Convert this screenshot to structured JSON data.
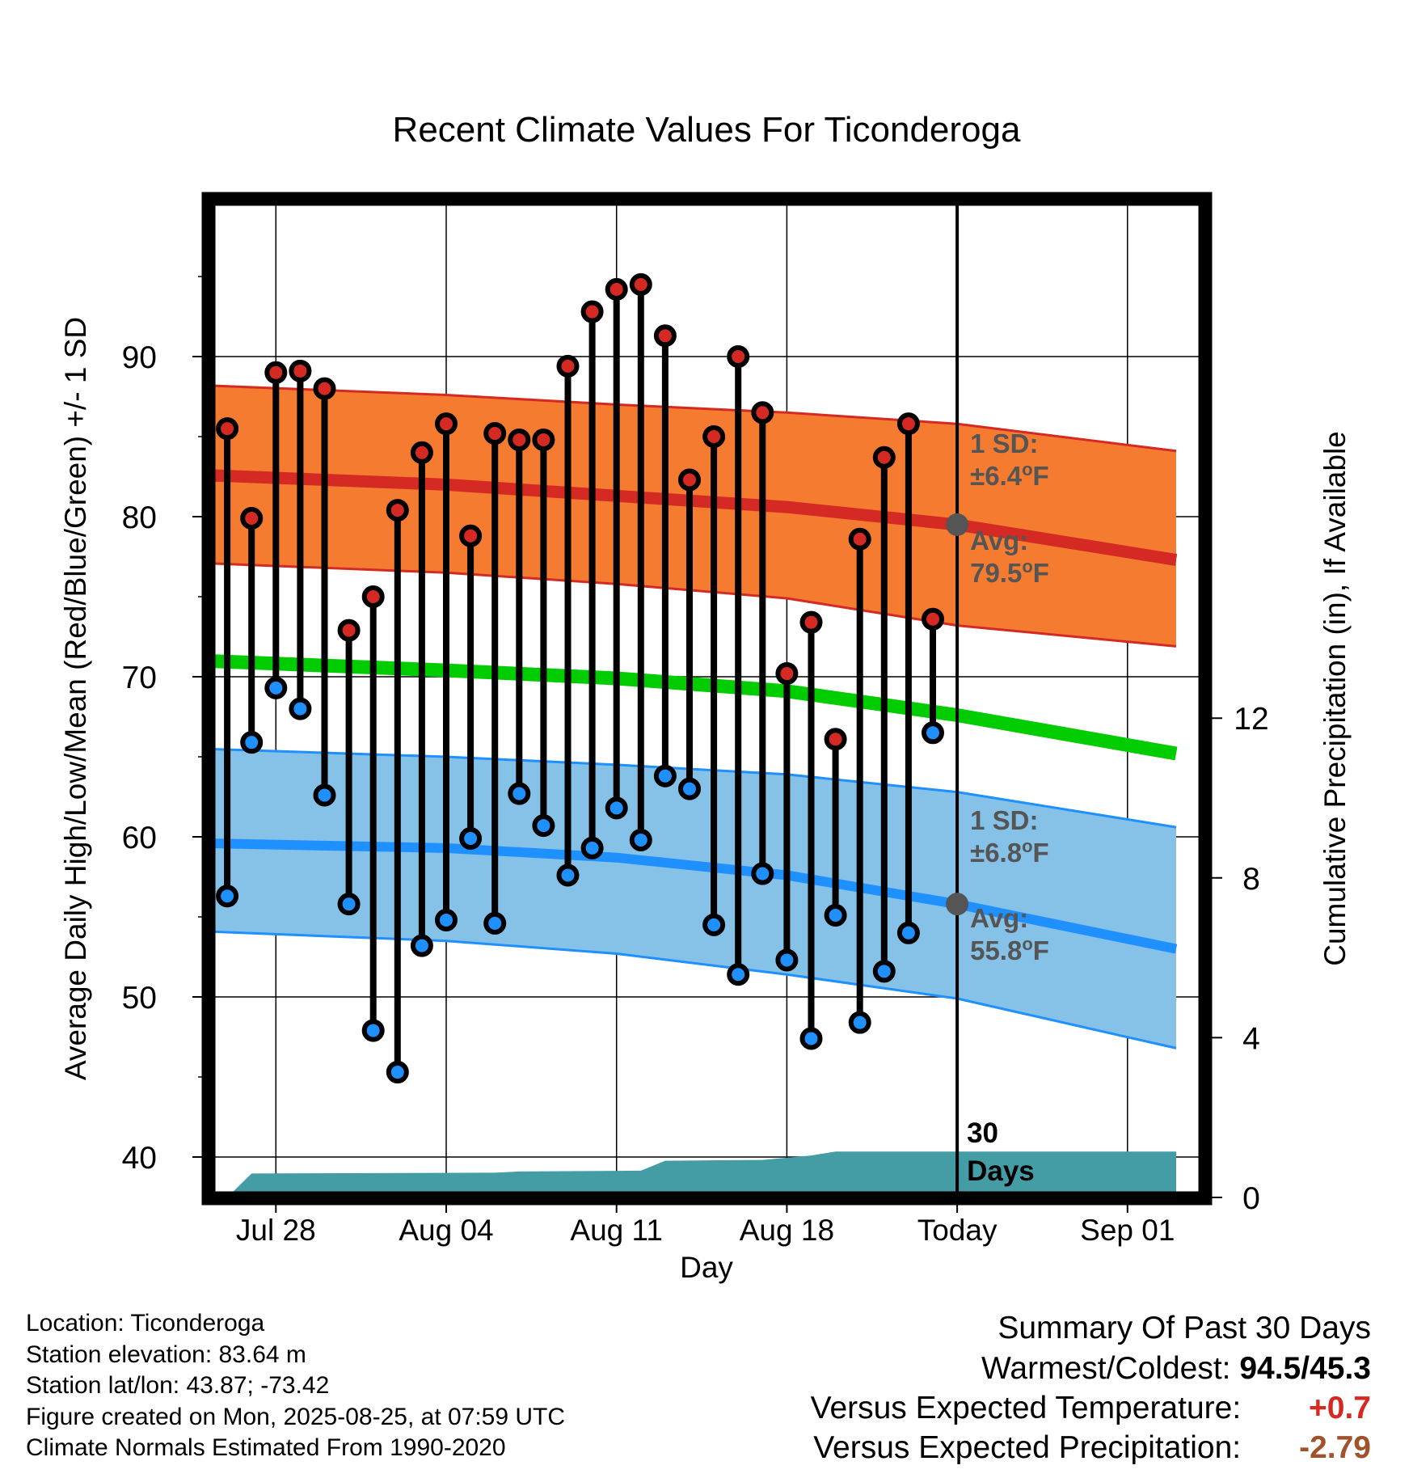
{
  "chart_data": {
    "type": "line",
    "title": "Recent Climate Values For Ticonderoga",
    "xlabel": "Day",
    "ylabel": "Average Daily High/Low/Mean (Red/Blue/Green) +/- 1 SD",
    "y2label": "Cumulative Precipitation (in), If Available",
    "ylim": [
      37.5,
      99.5
    ],
    "y_ticks": [
      40,
      50,
      60,
      70,
      80,
      90
    ],
    "y2lim": [
      0,
      20.3
    ],
    "y2_ticks": [
      0,
      4,
      8,
      12
    ],
    "x_tick_labels": [
      "Jul 28",
      "Aug 04",
      "Aug 11",
      "Aug 18",
      "Today",
      "Sep 01"
    ],
    "x_tick_dates": [
      "2025-07-28",
      "2025-08-04",
      "2025-08-11",
      "2025-08-18",
      "2025-08-25",
      "2025-09-01"
    ],
    "x_range": [
      "2025-07-25",
      "2025-09-03"
    ],
    "grid": true,
    "today": "2025-08-25",
    "period_label": "30 Days",
    "daily": [
      {
        "date": "2025-07-26",
        "high": 85.5,
        "low": 56.3
      },
      {
        "date": "2025-07-27",
        "high": 79.9,
        "low": 65.9
      },
      {
        "date": "2025-07-28",
        "high": 89.0,
        "low": 69.3
      },
      {
        "date": "2025-07-29",
        "high": 89.1,
        "low": 68.0
      },
      {
        "date": "2025-07-30",
        "high": 88.0,
        "low": 62.6
      },
      {
        "date": "2025-07-31",
        "high": 72.9,
        "low": 55.8
      },
      {
        "date": "2025-08-01",
        "high": 75.0,
        "low": 47.9
      },
      {
        "date": "2025-08-02",
        "high": 80.4,
        "low": 45.3
      },
      {
        "date": "2025-08-03",
        "high": 84.0,
        "low": 53.2
      },
      {
        "date": "2025-08-04",
        "high": 85.8,
        "low": 54.8
      },
      {
        "date": "2025-08-05",
        "high": 78.8,
        "low": 59.9
      },
      {
        "date": "2025-08-06",
        "high": 85.2,
        "low": 54.6
      },
      {
        "date": "2025-08-07",
        "high": 84.8,
        "low": 62.7
      },
      {
        "date": "2025-08-08",
        "high": 84.8,
        "low": 60.7
      },
      {
        "date": "2025-08-09",
        "high": 89.4,
        "low": 57.6
      },
      {
        "date": "2025-08-10",
        "high": 92.8,
        "low": 59.3
      },
      {
        "date": "2025-08-11",
        "high": 94.2,
        "low": 61.8
      },
      {
        "date": "2025-08-12",
        "high": 94.5,
        "low": 59.8
      },
      {
        "date": "2025-08-13",
        "high": 91.3,
        "low": 63.8
      },
      {
        "date": "2025-08-14",
        "high": 82.3,
        "low": 63.0
      },
      {
        "date": "2025-08-15",
        "high": 85.0,
        "low": 54.5
      },
      {
        "date": "2025-08-16",
        "high": 90.0,
        "low": 51.4
      },
      {
        "date": "2025-08-17",
        "high": 86.5,
        "low": 57.7
      },
      {
        "date": "2025-08-18",
        "high": 70.2,
        "low": 52.3
      },
      {
        "date": "2025-08-19",
        "high": 73.4,
        "low": 47.4
      },
      {
        "date": "2025-08-20",
        "high": 66.1,
        "low": 55.1
      },
      {
        "date": "2025-08-21",
        "high": 78.6,
        "low": 48.4
      },
      {
        "date": "2025-08-22",
        "high": 83.7,
        "low": 51.6
      },
      {
        "date": "2025-08-23",
        "high": 85.8,
        "low": 54.0
      },
      {
        "date": "2025-08-24",
        "high": 73.6,
        "low": 66.5
      }
    ],
    "normals": {
      "dates": [
        "2025-07-25",
        "2025-08-04",
        "2025-08-11",
        "2025-08-18",
        "2025-08-25",
        "2025-09-03"
      ],
      "avg_high": [
        82.6,
        82.0,
        81.3,
        80.6,
        79.5,
        77.3
      ],
      "avg_low": [
        59.6,
        59.3,
        58.7,
        57.6,
        55.8,
        53.0
      ],
      "avg_mean": [
        71.0,
        70.4,
        69.9,
        69.1,
        67.6,
        65.2
      ],
      "high_upper": [
        88.2,
        87.6,
        87.0,
        86.5,
        85.8,
        84.1
      ],
      "high_lower": [
        77.1,
        76.5,
        75.8,
        74.9,
        73.2,
        71.9
      ],
      "low_upper": [
        65.5,
        65.0,
        64.5,
        63.9,
        62.8,
        60.6
      ],
      "low_lower": [
        54.1,
        53.5,
        52.7,
        51.4,
        49.9,
        46.8
      ]
    },
    "precip_cumulative": {
      "dates": [
        "2025-07-25",
        "2025-07-26",
        "2025-07-27",
        "2025-08-06",
        "2025-08-07",
        "2025-08-12",
        "2025-08-13",
        "2025-08-17",
        "2025-08-19",
        "2025-08-20",
        "2025-09-03"
      ],
      "values": [
        0.0,
        0.0,
        0.6,
        0.62,
        0.65,
        0.67,
        0.92,
        0.94,
        1.05,
        1.15,
        1.15
      ]
    },
    "annotations": {
      "high_sd": "1 SD:\n±6.4°F",
      "high_avg": "Avg:\n79.5°F",
      "low_sd": "1 SD:\n±6.8°F",
      "low_avg": "Avg:\n55.8°F"
    },
    "colors": {
      "high_band": "#f47b2f",
      "high_line": "#d42a23",
      "mean_line": "#00cc00",
      "low_band": "#86c1e8",
      "low_line": "#1e90ff",
      "precip": "#449da4",
      "high_marker": "#d42a23",
      "low_marker": "#1e90ff"
    }
  },
  "info": {
    "location": "Location: Ticonderoga",
    "elevation": "Station elevation: 83.64 m",
    "latlon": "Station lat/lon: 43.87; -73.42",
    "created": "Figure created on Mon, 2025-08-25, at 07:59 UTC",
    "normals": "Climate Normals Estimated From 1990-2020"
  },
  "summary": {
    "heading": "Summary Of Past 30 Days",
    "warmest_label": "Warmest/Coldest:",
    "warmest_value": "94.5/45.3",
    "temp_label": "Versus Expected Temperature:",
    "temp_value": "+0.7",
    "temp_color": "#d42a23",
    "precip_label": "Versus Expected Precipitation:",
    "precip_value": "-2.79",
    "precip_color": "#a0522d"
  }
}
